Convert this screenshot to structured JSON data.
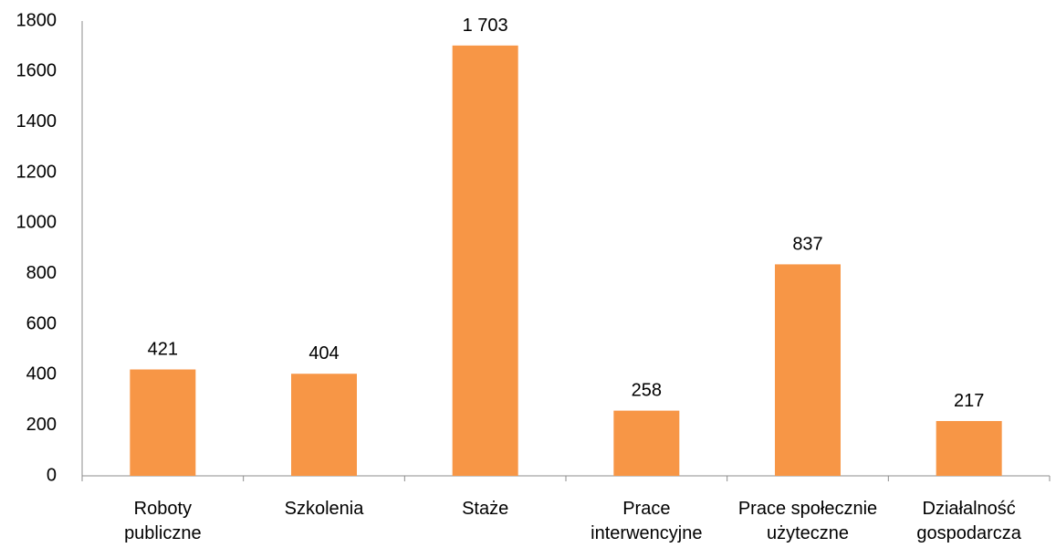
{
  "chart_data": {
    "type": "bar",
    "title": "",
    "xlabel": "",
    "ylabel": "",
    "categories": [
      [
        "Roboty",
        "publiczne"
      ],
      [
        "Szkolenia"
      ],
      [
        "Staże"
      ],
      [
        "Prace",
        "interwencyjne"
      ],
      [
        "Prace społecznie",
        "użyteczne"
      ],
      [
        "Działalność",
        "gospodarcza"
      ]
    ],
    "values": [
      421,
      404,
      1703,
      258,
      837,
      217
    ],
    "data_labels": [
      "421",
      "404",
      "1 703",
      "258",
      "837",
      "217"
    ],
    "ylim": [
      0,
      1800
    ],
    "yticks": [
      0,
      200,
      400,
      600,
      800,
      1000,
      1200,
      1400,
      1600,
      1800
    ],
    "grid": false,
    "legend": "none",
    "colors": {
      "bar": "#f79646",
      "axis": "#8c8c8c"
    }
  }
}
